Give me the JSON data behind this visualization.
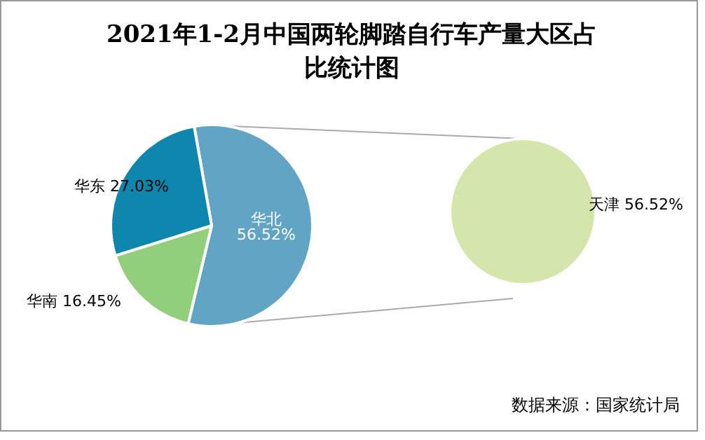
{
  "chart_data": [
    {
      "type": "pie",
      "title": "2021年1-2月中国两轮脚踏自行车产量大区占比统计图",
      "annotations": [
        "数据来源：国家统计局"
      ],
      "categories": [
        "华北",
        "华南",
        "华东"
      ],
      "values": [
        56.52,
        16.45,
        27.03
      ],
      "colors": [
        "#62a4c4",
        "#92cf7c",
        "#0e86ad"
      ],
      "value_labels": [
        "56.52%",
        "16.45%",
        "27.03%"
      ]
    },
    {
      "type": "pie",
      "categories": [
        "天津"
      ],
      "values": [
        56.52
      ],
      "colors": [
        "#d4e6ab"
      ],
      "value_labels": [
        "56.52%"
      ]
    }
  ]
}
